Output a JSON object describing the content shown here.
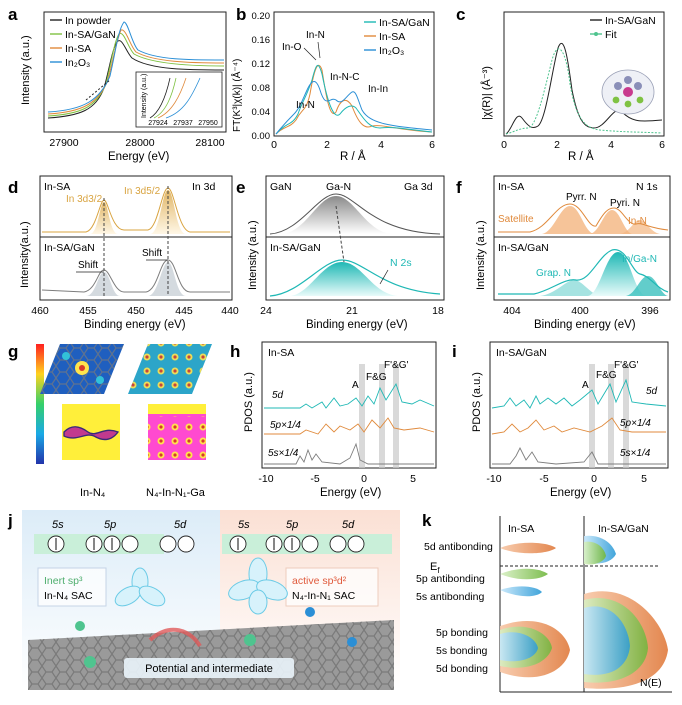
{
  "panels": {
    "a": {
      "letter": "a",
      "ylabel": "Intensity (a.u.)",
      "xlabel": "Energy (eV)",
      "xticks": [
        "27900",
        "28000",
        "28100"
      ],
      "legend": [
        "In powder",
        "In-SA/GaN",
        "In-SA",
        "In₂O₃"
      ],
      "inset_ylabel": "Intensity (a.u.)",
      "inset_xticks": [
        "27924",
        "27937",
        "27950"
      ]
    },
    "b": {
      "letter": "b",
      "ylabel": "FT(K³|χ(k)| (Å⁻⁴)",
      "xlabel": "R / Å",
      "yticks": [
        "0.00",
        "0.04",
        "0.08",
        "0.12",
        "0.16",
        "0.20"
      ],
      "xticks": [
        "0",
        "2",
        "4",
        "6"
      ],
      "legend": [
        "In-SA/GaN",
        "In-SA",
        "In₂O₃"
      ],
      "annotations": [
        "In-N",
        "In-O",
        "In-N-C",
        "In-In",
        "In-N"
      ]
    },
    "c": {
      "letter": "c",
      "ylabel": "|χ(R)| (Å⁻³)",
      "xlabel": "R / Å",
      "xticks": [
        "0",
        "2",
        "4",
        "6"
      ],
      "legend": [
        "In-SA/GaN",
        "Fit"
      ]
    },
    "d": {
      "letter": "d",
      "ylabel": "Intensity(a.u.)",
      "xlabel": "Binding energy (eV)",
      "xticks": [
        "460",
        "455",
        "450",
        "445",
        "440"
      ],
      "top_label": "In-SA",
      "corner_label": "In 3d",
      "bottom_label": "In-SA/GaN",
      "peak1": "In 3d3/2",
      "peak2": "In 3d5/2",
      "shift1": "Shift",
      "shift2": "Shift"
    },
    "e": {
      "letter": "e",
      "ylabel": "Intensity (a.u.)",
      "xlabel": "Binding energy (eV)",
      "xticks": [
        "24",
        "21",
        "18"
      ],
      "top_label": "GaN",
      "corner_label": "Ga 3d",
      "bottom_label": "In-SA/GaN",
      "peak_label": "Ga-N",
      "n2s_label": "N 2s"
    },
    "f": {
      "letter": "f",
      "ylabel": "Intensity (a.u.)",
      "xlabel": "Binding energy (eV)",
      "xticks": [
        "404",
        "400",
        "396"
      ],
      "top_label": "In-SA",
      "corner_label": "N 1s",
      "bottom_label": "In-SA/GaN",
      "satellite": "Satellite",
      "pyrr": "Pyrr. N",
      "pyri": "Pyri. N",
      "inn": "In-N",
      "grap": "Grap. N",
      "inga": "In/Ga-N"
    },
    "g": {
      "letter": "g",
      "label_left": "In-N₄",
      "label_right": "N₄-In-N₁-Ga"
    },
    "h": {
      "letter": "h",
      "title": "In-SA",
      "ylabel": "PDOS (a.u.)",
      "xlabel": "Energy (eV)",
      "xticks": [
        "-10",
        "-5",
        "0",
        "5"
      ],
      "curve_labels": [
        "5d",
        "5p×1/4",
        "5s×1/4"
      ],
      "band_labels": [
        "A",
        "F&G",
        "F'&G'"
      ]
    },
    "i": {
      "letter": "i",
      "title": "In-SA/GaN",
      "ylabel": "PDOS (a.u.)",
      "xlabel": "Energy (eV)",
      "xticks": [
        "-10",
        "-5",
        "0",
        "5"
      ],
      "curve_labels": [
        "5d",
        "5p×1/4",
        "5s×1/4"
      ],
      "band_labels": [
        "A",
        "F&G",
        "F'&G'"
      ]
    },
    "j": {
      "letter": "j",
      "orb_5s": "5s",
      "orb_5p": "5p",
      "orb_5d": "5d",
      "inert_box_line1": "Inert sp³",
      "inert_box_line2": "In-N₄ SAC",
      "active_box_line1": "active sp³d²",
      "active_box_line2": "N₄-In-N₁ SAC",
      "caption": "Potential and intermediate"
    },
    "k": {
      "letter": "k",
      "title_left": "In-SA",
      "title_right": "In-SA/GaN",
      "ef": "E",
      "ef_sub": "f",
      "levels": [
        "5d antibonding",
        "5p antibonding",
        "5s antibonding",
        "5p bonding",
        "5s bonding",
        "5d bonding"
      ],
      "xaxis": "N(E)"
    }
  },
  "colors": {
    "black": "#222222",
    "teal": "#1fb8b5",
    "orange": "#e08a3c",
    "blue": "#2b8fd6",
    "green": "#7fc243",
    "gray": "#7d7d7d",
    "gold": "#d9a441"
  }
}
